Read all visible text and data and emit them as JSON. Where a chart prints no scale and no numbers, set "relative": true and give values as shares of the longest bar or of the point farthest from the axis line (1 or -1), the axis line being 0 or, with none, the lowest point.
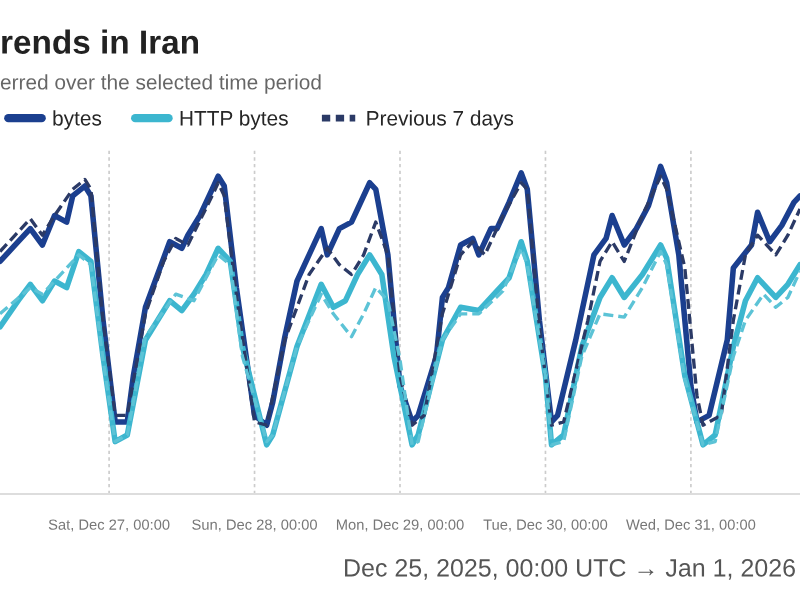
{
  "chart_data": {
    "type": "line",
    "title": "rends in Iran",
    "subtitle": "erred over the selected time period",
    "relative": true,
    "xlim": [
      "2025-12-26T06:00",
      "2025-12-31T18:00"
    ],
    "xticks": [
      {
        "value": "2025-12-27T00:00",
        "label": "Sat, Dec 27, 00:00"
      },
      {
        "value": "2025-12-28T00:00",
        "label": "Sun, Dec 28, 00:00"
      },
      {
        "value": "2025-12-29T00:00",
        "label": "Mon, Dec 29, 00:00"
      },
      {
        "value": "2025-12-30T00:00",
        "label": "Tue, Dec 30, 00:00"
      },
      {
        "value": "2025-12-31T00:00",
        "label": "Wed, Dec 31, 00:00"
      }
    ],
    "grid": "x",
    "legend": "top left",
    "annotations": [
      "Dec 25, 2025, 00:00 UTC → Jan 1, 2026"
    ],
    "series": [
      {
        "name": "bytes",
        "color": "#1b3f8f",
        "line_style": "solid",
        "x": [
          "2025-12-26T06:00",
          "2025-12-26T09:00",
          "2025-12-26T11:00",
          "2025-12-26T13:00",
          "2025-12-26T15:00",
          "2025-12-26T17:00",
          "2025-12-26T18:00",
          "2025-12-26T20:00",
          "2025-12-26T21:00",
          "2025-12-26T23:00",
          "2025-12-27T01:00",
          "2025-12-27T03:00",
          "2025-12-27T04:00",
          "2025-12-27T06:00",
          "2025-12-27T08:00",
          "2025-12-27T10:00",
          "2025-12-27T12:00",
          "2025-12-27T13:00",
          "2025-12-27T15:00",
          "2025-12-27T17:00",
          "2025-12-27T18:00",
          "2025-12-27T19:00",
          "2025-12-27T21:00",
          "2025-12-28T00:00",
          "2025-12-28T02:00",
          "2025-12-28T03:00",
          "2025-12-28T05:00",
          "2025-12-28T07:00",
          "2025-12-28T09:00",
          "2025-12-28T11:00",
          "2025-12-28T12:00",
          "2025-12-28T14:00",
          "2025-12-28T16:00",
          "2025-12-28T17:00",
          "2025-12-28T19:00",
          "2025-12-28T20:00",
          "2025-12-28T22:00",
          "2025-12-29T00:00",
          "2025-12-29T02:00",
          "2025-12-29T03:00",
          "2025-12-29T06:00",
          "2025-12-29T07:00",
          "2025-12-29T08:00",
          "2025-12-29T10:00",
          "2025-12-29T12:00",
          "2025-12-29T13:00",
          "2025-12-29T15:00",
          "2025-12-29T16:00",
          "2025-12-29T18:00",
          "2025-12-29T20:00",
          "2025-12-29T21:00",
          "2025-12-29T23:00",
          "2025-12-30T01:00",
          "2025-12-30T02:00",
          "2025-12-30T05:00",
          "2025-12-30T08:00",
          "2025-12-30T10:00",
          "2025-12-30T11:00",
          "2025-12-30T13:00",
          "2025-12-30T15:00",
          "2025-12-30T17:00",
          "2025-12-30T19:00",
          "2025-12-30T20:00",
          "2025-12-30T22:00",
          "2025-12-31T00:00",
          "2025-12-31T01:00",
          "2025-12-31T03:00",
          "2025-12-31T06:00",
          "2025-12-31T07:00",
          "2025-12-31T10:00",
          "2025-12-31T11:00",
          "2025-12-31T13:00",
          "2025-12-31T15:00",
          "2025-12-31T17:00",
          "2025-12-31T18:00"
        ],
        "values": [
          0.71,
          0.77,
          0.81,
          0.76,
          0.85,
          0.83,
          0.91,
          0.94,
          0.91,
          0.53,
          0.22,
          0.22,
          0.36,
          0.57,
          0.67,
          0.77,
          0.75,
          0.79,
          0.85,
          0.93,
          0.97,
          0.94,
          0.63,
          0.24,
          0.21,
          0.28,
          0.48,
          0.65,
          0.73,
          0.81,
          0.73,
          0.81,
          0.83,
          0.87,
          0.95,
          0.93,
          0.73,
          0.33,
          0.22,
          0.24,
          0.42,
          0.6,
          0.63,
          0.76,
          0.78,
          0.73,
          0.81,
          0.81,
          0.89,
          0.98,
          0.93,
          0.53,
          0.22,
          0.24,
          0.47,
          0.73,
          0.78,
          0.85,
          0.76,
          0.81,
          0.88,
          1.0,
          0.95,
          0.73,
          0.33,
          0.22,
          0.24,
          0.47,
          0.69,
          0.76,
          0.86,
          0.77,
          0.82,
          0.89,
          0.91
        ]
      },
      {
        "name": "HTTP bytes",
        "color": "#3cb6cf",
        "line_style": "solid",
        "x": [
          "2025-12-26T06:00",
          "2025-12-26T09:00",
          "2025-12-26T11:00",
          "2025-12-26T13:00",
          "2025-12-26T15:00",
          "2025-12-26T17:00",
          "2025-12-26T19:00",
          "2025-12-26T21:00",
          "2025-12-26T23:00",
          "2025-12-27T01:00",
          "2025-12-27T03:00",
          "2025-12-27T06:00",
          "2025-12-27T10:00",
          "2025-12-27T12:00",
          "2025-12-27T14:00",
          "2025-12-27T16:00",
          "2025-12-27T18:00",
          "2025-12-27T20:00",
          "2025-12-27T22:00",
          "2025-12-28T02:00",
          "2025-12-28T03:00",
          "2025-12-28T07:00",
          "2025-12-28T11:00",
          "2025-12-28T13:00",
          "2025-12-28T15:00",
          "2025-12-28T17:00",
          "2025-12-28T19:00",
          "2025-12-28T21:00",
          "2025-12-28T23:00",
          "2025-12-29T02:00",
          "2025-12-29T03:00",
          "2025-12-29T07:00",
          "2025-12-29T10:00",
          "2025-12-29T13:00",
          "2025-12-29T16:00",
          "2025-12-29T18:00",
          "2025-12-29T20:00",
          "2025-12-29T21:00",
          "2025-12-30T00:00",
          "2025-12-30T01:00",
          "2025-12-30T03:00",
          "2025-12-30T06:00",
          "2025-12-30T09:00",
          "2025-12-30T11:00",
          "2025-12-30T13:00",
          "2025-12-30T16:00",
          "2025-12-30T19:00",
          "2025-12-30T20:00",
          "2025-12-30T23:00",
          "2025-12-31T02:00",
          "2025-12-31T04:00",
          "2025-12-31T07:00",
          "2025-12-31T09:00",
          "2025-12-31T11:00",
          "2025-12-31T14:00",
          "2025-12-31T16:00",
          "2025-12-31T18:00"
        ],
        "values": [
          0.51,
          0.59,
          0.64,
          0.59,
          0.65,
          0.63,
          0.74,
          0.71,
          0.42,
          0.16,
          0.18,
          0.47,
          0.59,
          0.56,
          0.61,
          0.67,
          0.75,
          0.71,
          0.45,
          0.15,
          0.18,
          0.45,
          0.64,
          0.57,
          0.59,
          0.67,
          0.73,
          0.67,
          0.42,
          0.15,
          0.18,
          0.47,
          0.57,
          0.56,
          0.62,
          0.66,
          0.77,
          0.71,
          0.36,
          0.15,
          0.18,
          0.45,
          0.6,
          0.66,
          0.6,
          0.67,
          0.76,
          0.72,
          0.36,
          0.15,
          0.18,
          0.45,
          0.59,
          0.66,
          0.6,
          0.64,
          0.7
        ]
      },
      {
        "name": "Previous 7 days",
        "color": "#2b3a66",
        "line_style": "dashed",
        "x": [
          "2025-12-26T06:00",
          "2025-12-26T11:00",
          "2025-12-26T13:00",
          "2025-12-26T15:00",
          "2025-12-26T18:00",
          "2025-12-26T20:00",
          "2025-12-26T21:00",
          "2025-12-26T23:00",
          "2025-12-27T01:00",
          "2025-12-27T03:00",
          "2025-12-27T06:00",
          "2025-12-27T09:00",
          "2025-12-27T11:00",
          "2025-12-27T13:00",
          "2025-12-27T17:00",
          "2025-12-27T18:00",
          "2025-12-27T19:00",
          "2025-12-27T21:00",
          "2025-12-28T00:00",
          "2025-12-28T02:00",
          "2025-12-28T05:00",
          "2025-12-28T09:00",
          "2025-12-28T12:00",
          "2025-12-28T14:00",
          "2025-12-28T16:00",
          "2025-12-28T18:00",
          "2025-12-28T20:00",
          "2025-12-28T22:00",
          "2025-12-29T00:00",
          "2025-12-29T02:00",
          "2025-12-29T04:00",
          "2025-12-29T07:00",
          "2025-12-29T10:00",
          "2025-12-29T12:00",
          "2025-12-29T14:00",
          "2025-12-29T17:00",
          "2025-12-29T20:00",
          "2025-12-29T21:00",
          "2025-12-29T23:00",
          "2025-12-30T01:00",
          "2025-12-30T03:00",
          "2025-12-30T07:00",
          "2025-12-30T09:00",
          "2025-12-30T11:00",
          "2025-12-30T13:00",
          "2025-12-30T16:00",
          "2025-12-30T19:00",
          "2025-12-30T20:00",
          "2025-12-30T23:00",
          "2025-12-31T01:00",
          "2025-12-31T02:00",
          "2025-12-31T05:00",
          "2025-12-31T07:00",
          "2025-12-31T09:00",
          "2025-12-31T11:00",
          "2025-12-31T14:00",
          "2025-12-31T16:00",
          "2025-12-31T18:00"
        ],
        "values": [
          0.74,
          0.84,
          0.79,
          0.85,
          0.93,
          0.96,
          0.93,
          0.53,
          0.24,
          0.24,
          0.55,
          0.71,
          0.78,
          0.76,
          0.91,
          0.95,
          0.91,
          0.61,
          0.22,
          0.21,
          0.47,
          0.67,
          0.75,
          0.7,
          0.67,
          0.73,
          0.83,
          0.73,
          0.36,
          0.21,
          0.24,
          0.55,
          0.73,
          0.77,
          0.73,
          0.85,
          0.95,
          0.93,
          0.51,
          0.21,
          0.22,
          0.53,
          0.71,
          0.77,
          0.71,
          0.85,
          0.97,
          0.93,
          0.69,
          0.3,
          0.21,
          0.24,
          0.53,
          0.73,
          0.79,
          0.73,
          0.79,
          0.87
        ]
      },
      {
        "color": "#5cc3d6",
        "line_style": "dashed",
        "x": [
          "2025-12-26T06:00",
          "2025-12-26T11:00",
          "2025-12-26T13:00",
          "2025-12-26T19:00",
          "2025-12-26T21:00",
          "2025-12-26T23:00",
          "2025-12-27T01:00",
          "2025-12-27T03:00",
          "2025-12-27T06:00",
          "2025-12-27T11:00",
          "2025-12-27T14:00",
          "2025-12-27T18:00",
          "2025-12-27T20:00",
          "2025-12-27T22:00",
          "2025-12-28T02:00",
          "2025-12-28T03:00",
          "2025-12-28T07:00",
          "2025-12-28T11:00",
          "2025-12-28T13:00",
          "2025-12-28T16:00",
          "2025-12-28T18:00",
          "2025-12-28T20:00",
          "2025-12-28T22:00",
          "2025-12-29T00:00",
          "2025-12-29T02:00",
          "2025-12-29T03:00",
          "2025-12-29T07:00",
          "2025-12-29T10:00",
          "2025-12-29T13:00",
          "2025-12-29T17:00",
          "2025-12-29T20:00",
          "2025-12-29T21:00",
          "2025-12-30T00:00",
          "2025-12-30T01:00",
          "2025-12-30T03:00",
          "2025-12-30T06:00",
          "2025-12-30T09:00",
          "2025-12-30T13:00",
          "2025-12-30T16:00",
          "2025-12-30T19:00",
          "2025-12-30T20:00",
          "2025-12-30T23:00",
          "2025-12-31T02:00",
          "2025-12-31T04:00",
          "2025-12-31T07:00",
          "2025-12-31T09:00",
          "2025-12-31T12:00",
          "2025-12-31T14:00",
          "2025-12-31T16:00",
          "2025-12-31T18:00"
        ],
        "values": [
          0.55,
          0.63,
          0.61,
          0.73,
          0.7,
          0.41,
          0.16,
          0.18,
          0.48,
          0.61,
          0.59,
          0.73,
          0.7,
          0.42,
          0.16,
          0.18,
          0.45,
          0.61,
          0.55,
          0.48,
          0.55,
          0.63,
          0.59,
          0.41,
          0.15,
          0.16,
          0.47,
          0.55,
          0.55,
          0.62,
          0.75,
          0.7,
          0.36,
          0.15,
          0.16,
          0.42,
          0.55,
          0.54,
          0.63,
          0.74,
          0.7,
          0.35,
          0.15,
          0.16,
          0.42,
          0.53,
          0.61,
          0.57,
          0.6,
          0.68
        ]
      }
    ]
  }
}
